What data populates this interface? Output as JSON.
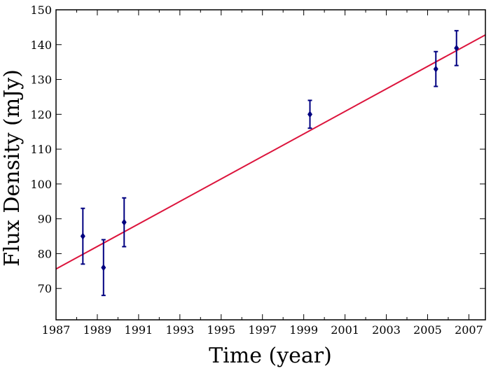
{
  "chart_data": {
    "type": "scatter",
    "xlabel": "Time (year)",
    "ylabel": "Flux Density (mJy)",
    "xlim": [
      1987,
      2007.8
    ],
    "ylim": [
      61,
      150
    ],
    "x_ticks": [
      1987,
      1989,
      1991,
      1993,
      1995,
      1997,
      1999,
      2001,
      2003,
      2005,
      2007
    ],
    "y_ticks": [
      70,
      80,
      90,
      100,
      110,
      120,
      130,
      140,
      150
    ],
    "grid": false,
    "series": [
      {
        "kind": "errorbar",
        "color": "#000080",
        "points": [
          {
            "x": 1988.3,
            "y": 85,
            "yerr_low": 8,
            "yerr_high": 8
          },
          {
            "x": 1989.3,
            "y": 76,
            "yerr_low": 8,
            "yerr_high": 8
          },
          {
            "x": 1990.3,
            "y": 89,
            "yerr_low": 7,
            "yerr_high": 7
          },
          {
            "x": 1999.3,
            "y": 120,
            "yerr_low": 4,
            "yerr_high": 4
          },
          {
            "x": 2005.4,
            "y": 133,
            "yerr_low": 5,
            "yerr_high": 5
          },
          {
            "x": 2006.4,
            "y": 139,
            "yerr_low": 5,
            "yerr_high": 5
          }
        ]
      },
      {
        "kind": "fit-line",
        "color": "#dc143c",
        "x": [
          1987,
          2007.8
        ],
        "y": [
          75.6,
          142.8
        ]
      }
    ]
  }
}
